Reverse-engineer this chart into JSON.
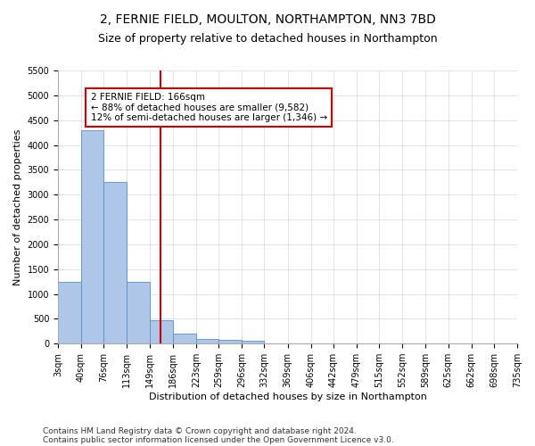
{
  "title": "2, FERNIE FIELD, MOULTON, NORTHAMPTON, NN3 7BD",
  "subtitle": "Size of property relative to detached houses in Northampton",
  "xlabel": "Distribution of detached houses by size in Northampton",
  "ylabel": "Number of detached properties",
  "footnote1": "Contains HM Land Registry data © Crown copyright and database right 2024.",
  "footnote2": "Contains public sector information licensed under the Open Government Licence v3.0.",
  "bin_edges": [
    3,
    40,
    76,
    113,
    149,
    186,
    223,
    259,
    296,
    332,
    369,
    406,
    442,
    479,
    515,
    552,
    589,
    625,
    662,
    698,
    735
  ],
  "bar_heights": [
    1250,
    4300,
    3250,
    1250,
    475,
    200,
    100,
    70,
    50,
    0,
    0,
    0,
    0,
    0,
    0,
    0,
    0,
    0,
    0,
    0
  ],
  "bar_color": "#aec6e8",
  "bar_edge_color": "#5b8fc9",
  "property_size": 166,
  "vline_color": "#cc0000",
  "ylim": [
    0,
    5500
  ],
  "yticks": [
    0,
    500,
    1000,
    1500,
    2000,
    2500,
    3000,
    3500,
    4000,
    4500,
    5000,
    5500
  ],
  "annotation_title": "2 FERNIE FIELD: 166sqm",
  "annotation_line1": "← 88% of detached houses are smaller (9,582)",
  "annotation_line2": "12% of semi-detached houses are larger (1,346) →",
  "annotation_box_color": "#cc0000",
  "title_fontsize": 10,
  "subtitle_fontsize": 9,
  "label_fontsize": 8,
  "tick_fontsize": 7,
  "annotation_fontsize": 7.5,
  "footnote_fontsize": 6.5,
  "background_color": "#ffffff",
  "grid_color": "#d0d8e8"
}
